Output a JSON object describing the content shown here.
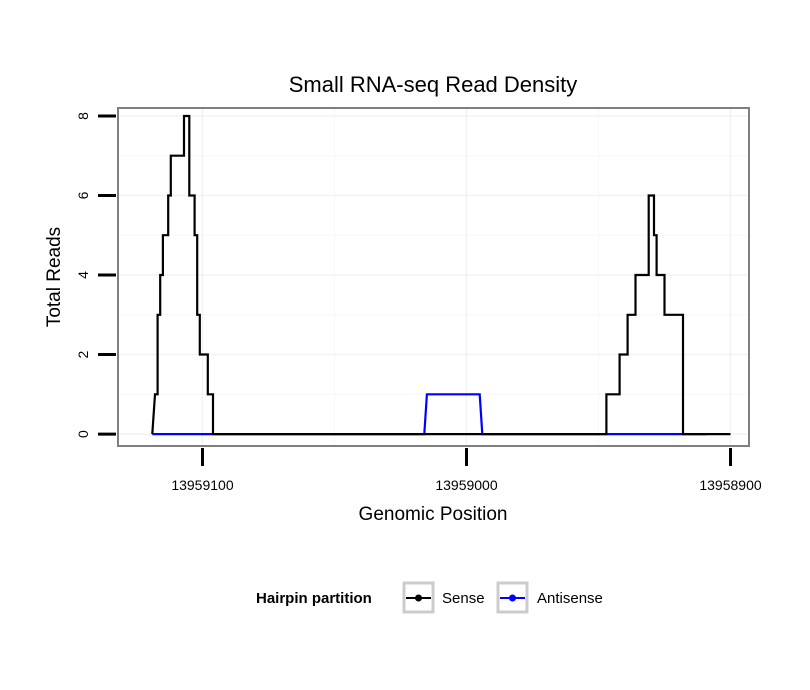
{
  "chart_data": {
    "type": "line",
    "title": "Small RNA-seq Read Density",
    "xlabel": "Genomic Position",
    "ylabel": "Total Reads",
    "x_reversed": true,
    "xlim": [
      13959132,
      13958893
    ],
    "ylim": [
      -0.3,
      8.2
    ],
    "x_ticks": [
      13959100,
      13959000,
      13958900
    ],
    "x_tick_labels": [
      "13959100",
      "13959000",
      "13958900"
    ],
    "y_ticks": [
      0,
      2,
      4,
      6,
      8
    ],
    "y_tick_labels": [
      "0",
      "2",
      "4",
      "6",
      "8"
    ],
    "grid": true,
    "legend": {
      "title": "Hairpin partition",
      "position": "bottom",
      "entries": [
        {
          "name": "Sense",
          "color": "#000000"
        },
        {
          "name": "Antisense",
          "color": "#0000ff"
        }
      ]
    },
    "series": [
      {
        "name": "Sense",
        "color": "#000000",
        "x": [
          13959119,
          13959118,
          13959117,
          13959117,
          13959116,
          13959116,
          13959115,
          13959115,
          13959113,
          13959113,
          13959112,
          13959112,
          13959107,
          13959107,
          13959105,
          13959105,
          13959103,
          13959103,
          13959102,
          13959102,
          13959101,
          13959101,
          13959098,
          13959098,
          13959096,
          13959096,
          13959094,
          13959094,
          13959090,
          13959090,
          13959087,
          13959087,
          13959086,
          13959086,
          13959084,
          13959084,
          13958947,
          13958947,
          13958942,
          13958942,
          13958939,
          13958939,
          13958936,
          13958936,
          13958931,
          13958931,
          13958929,
          13958929,
          13958928,
          13958928,
          13958925,
          13958925,
          13958918,
          13958918,
          13958916,
          13958916,
          13958911,
          13958911,
          13958908,
          13958908,
          13958908,
          13958900
        ],
        "y": [
          0,
          1,
          1,
          3,
          3,
          4,
          4,
          5,
          5,
          6,
          6,
          7,
          7,
          8,
          8,
          6,
          6,
          5,
          5,
          3,
          3,
          2,
          2,
          1,
          1,
          0,
          0,
          0,
          0,
          0,
          0,
          0,
          0,
          0,
          0,
          0,
          0,
          1,
          1,
          2,
          2,
          3,
          3,
          4,
          4,
          6,
          6,
          5,
          5,
          4,
          4,
          3,
          3,
          0,
          0,
          0,
          0,
          0,
          0,
          0,
          0,
          0
        ]
      },
      {
        "name": "Antisense",
        "color": "#0000ff",
        "x": [
          13959119,
          13959086,
          13959016,
          13959015,
          13958995,
          13958994,
          13958947,
          13958909
        ],
        "y": [
          0,
          0,
          0,
          1,
          1,
          0,
          0,
          0
        ]
      }
    ]
  }
}
